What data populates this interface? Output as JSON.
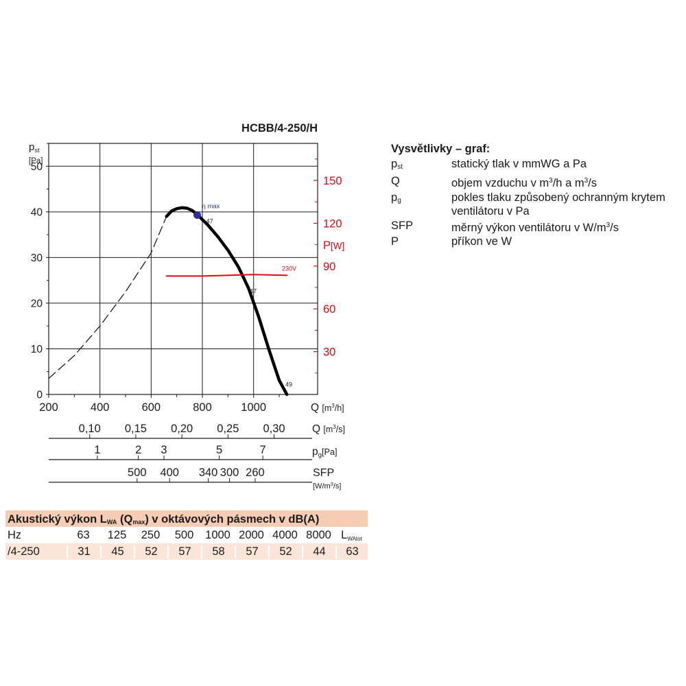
{
  "chart_data": {
    "type": "line",
    "title": "HCBB/4-250/H",
    "y_axis": {
      "label_main": "p",
      "label_sub": "st",
      "unit": "[Pa]",
      "range": [
        0,
        55
      ],
      "ticks": [
        "0",
        "10",
        "20",
        "30",
        "40",
        "50"
      ]
    },
    "y2_axis": {
      "label_main": "P",
      "unit": "[W]",
      "color": "#e30613",
      "range": [
        0,
        176
      ],
      "ticks": [
        "30",
        "60",
        "90",
        "120",
        "150"
      ]
    },
    "x_axis": {
      "label": "Q [m³/h]",
      "range": [
        200,
        1250
      ],
      "ticks": [
        "200",
        "400",
        "600",
        "800",
        "1000"
      ]
    },
    "secondary_scales": [
      {
        "label": "Q [m³/s]",
        "ticks": [
          {
            "label": "0,10",
            "q": 360
          },
          {
            "label": "0,15",
            "q": 540
          },
          {
            "label": "0,20",
            "q": 720
          },
          {
            "label": "0,25",
            "q": 900
          },
          {
            "label": "0,30",
            "q": 1080
          }
        ]
      },
      {
        "label_main": "p",
        "label_sub": "g",
        "unit": "[Pa]",
        "ticks": [
          {
            "label": "1",
            "q": 390
          },
          {
            "label": "2",
            "q": 550
          },
          {
            "label": "3",
            "q": 650
          },
          {
            "label": "5",
            "q": 866
          },
          {
            "label": "7",
            "q": 1036
          }
        ]
      },
      {
        "label": "SFP",
        "unit": "[W/m³/s]",
        "ticks": [
          {
            "label": "500",
            "q": 545
          },
          {
            "label": "400",
            "q": 672
          },
          {
            "label": "340",
            "q": 823
          },
          {
            "label": "300",
            "q": 906
          },
          {
            "label": "260",
            "q": 1006
          }
        ]
      }
    ],
    "series": [
      {
        "name": "",
        "role": "pressure-unstable",
        "style": "dashed",
        "color": "#1a1a1a",
        "x": [
          200,
          300,
          400,
          500,
          600,
          660
        ],
        "y": [
          3.5,
          8.5,
          15,
          22.5,
          31,
          39
        ]
      },
      {
        "name": "",
        "role": "pressure",
        "style": "solid",
        "color": "#000000",
        "x": [
          660,
          680,
          700,
          720,
          740,
          760,
          780,
          820,
          860,
          900,
          940,
          980,
          1020,
          1060,
          1100,
          1130
        ],
        "y": [
          39,
          40.2,
          40.7,
          40.9,
          40.8,
          40.3,
          39.4,
          37.2,
          34.6,
          31.6,
          28,
          23.3,
          17,
          9.8,
          3.1,
          0
        ]
      },
      {
        "name": "230V",
        "role": "power",
        "style": "solid",
        "color": "#e30613",
        "x": [
          660,
          800,
          1000,
          1130
        ],
        "y": [
          83,
          83,
          84,
          83.5
        ]
      }
    ],
    "annotations": [
      {
        "text": "η max",
        "x": 780,
        "y": 39.3,
        "marker": "dot",
        "color": "#2e3192"
      },
      {
        "text": "47",
        "x": 815,
        "y": 37.5
      },
      {
        "text": "47",
        "x": 985,
        "y": 22.2
      },
      {
        "text": "49",
        "x": 1124,
        "y": 1.7
      }
    ],
    "grid": true
  },
  "legend": {
    "title": "Vysvětlivky – graf:",
    "items": [
      {
        "sym_main": "p",
        "sym_sub": "st",
        "desc": "statický tlak v mmWG a Pa"
      },
      {
        "sym_main": "Q",
        "sym_sub": "",
        "desc_a": "objem vzduchu v m",
        "desc_sup": "3",
        "desc_b": "/h a m",
        "desc_sup2": "3",
        "desc_c": "/s"
      },
      {
        "sym_main": "p",
        "sym_sub": "g",
        "desc": "pokles tlaku způsobený ochranným krytem ventilátoru v Pa"
      },
      {
        "sym_main": "SFP",
        "sym_sub": "",
        "desc_a": "měrný výkon ventilátoru v W/m",
        "desc_sup": "3",
        "desc_b": "/s",
        "desc_sup2": "",
        "desc_c": ""
      },
      {
        "sym_main": "P",
        "sym_sub": "",
        "desc": "příkon ve W"
      }
    ]
  },
  "acoustic": {
    "title_a": "Akustický výkon L",
    "title_sub1": "WA",
    "title_b": " (Q",
    "title_sub2": "max",
    "title_c": ") v oktávových pásmech v dB(A)",
    "header_label": "Hz",
    "header_values": [
      "63",
      "125",
      "250",
      "500",
      "1000",
      "2000",
      "4000",
      "8000"
    ],
    "header_total_main": "L",
    "header_total_sub": "WAtot",
    "row_label": "/4-250",
    "row_values": [
      "31",
      "45",
      "52",
      "57",
      "58",
      "57",
      "52",
      "44"
    ],
    "row_total": "63"
  }
}
